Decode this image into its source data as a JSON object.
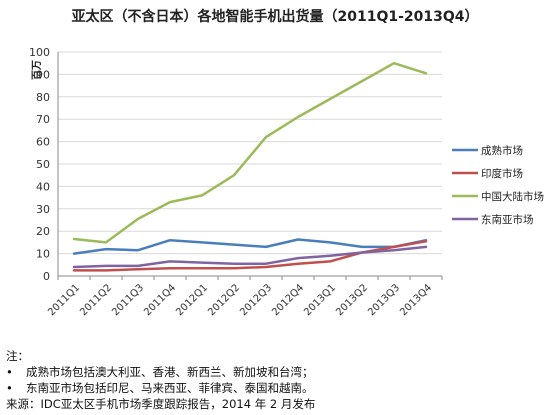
{
  "chart_data": {
    "type": "line",
    "title": "亚太区（不含日本）各地智能手机出货量（2011Q1-2013Q4）",
    "ylabel": "百万",
    "ylim": [
      0,
      100
    ],
    "yticks": [
      0,
      10,
      20,
      30,
      40,
      50,
      60,
      70,
      80,
      90,
      100
    ],
    "grid": true,
    "legend_position": "right",
    "categories": [
      "2011Q1",
      "2011Q2",
      "2011Q3",
      "2011Q4",
      "2012Q1",
      "2012Q2",
      "2012Q3",
      "2012Q4",
      "2013Q1",
      "2013Q2",
      "2013Q3",
      "2013Q4"
    ],
    "series": [
      {
        "name": "成熟市场",
        "color": "#4a7ebb",
        "values": [
          10,
          12,
          11.5,
          16,
          15,
          14,
          13,
          16.3,
          15,
          13,
          13,
          16
        ]
      },
      {
        "name": "印度市场",
        "color": "#c0504d",
        "values": [
          2.5,
          2.5,
          3,
          3.5,
          3.5,
          3.5,
          4,
          5.5,
          6.5,
          10.5,
          13,
          15.5
        ]
      },
      {
        "name": "中国大陆市场",
        "color": "#9bbb59",
        "values": [
          16.5,
          15,
          25.5,
          33,
          36,
          45,
          62,
          71,
          79,
          87,
          95,
          90.5
        ]
      },
      {
        "name": "东南亚市场",
        "color": "#8064a2",
        "values": [
          4,
          4.5,
          4.5,
          6.5,
          6,
          5.5,
          5.5,
          8,
          9,
          10.5,
          11.5,
          13
        ]
      }
    ]
  },
  "notes": {
    "heading": "注：",
    "bullet": "•",
    "items": [
      "成熟市场包括澳大利亚、香港、新西兰、新加坡和台湾；",
      "东南亚市场包括印尼、马来西亚、菲律宾、泰国和越南。"
    ],
    "source": "来源：IDC亚太区手机市场季度跟踪报告，2014 年 2 月发布"
  }
}
